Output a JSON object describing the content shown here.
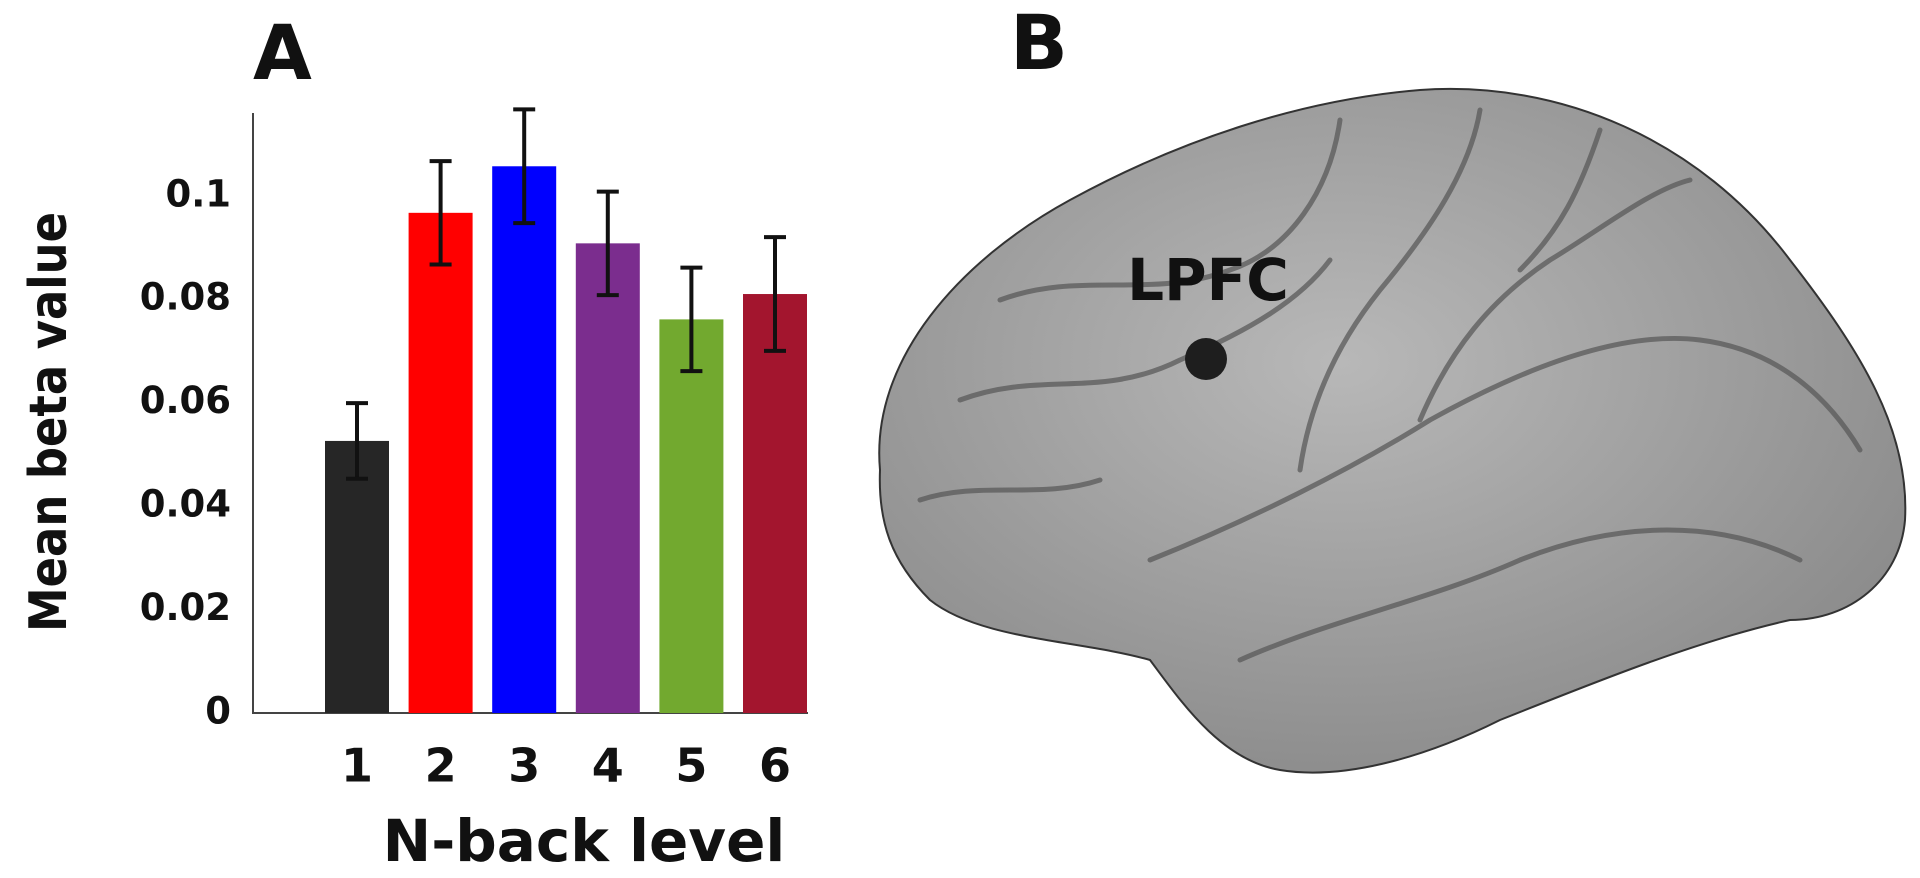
{
  "chart_data": {
    "type": "bar",
    "panel_label": "A",
    "x_label": "N-back level",
    "y_label": "Mean beta value",
    "categories": [
      "1",
      "2",
      "3",
      "4",
      "5",
      "6"
    ],
    "values": [
      0.0526,
      0.0967,
      0.1057,
      0.0908,
      0.0761,
      0.081
    ],
    "errors": [
      0.0073,
      0.01,
      0.011,
      0.01,
      0.01,
      0.011
    ],
    "colors": [
      "#262626",
      "#ff0000",
      "#0000ff",
      "#7b2d8e",
      "#72a92f",
      "#a3152e"
    ],
    "ylim": [
      0,
      0.116
    ],
    "yticks": [
      0,
      0.02,
      0.04,
      0.06,
      0.08,
      0.1
    ],
    "grid": false
  },
  "brain": {
    "panel_label": "B",
    "region_label": "LPFC"
  }
}
